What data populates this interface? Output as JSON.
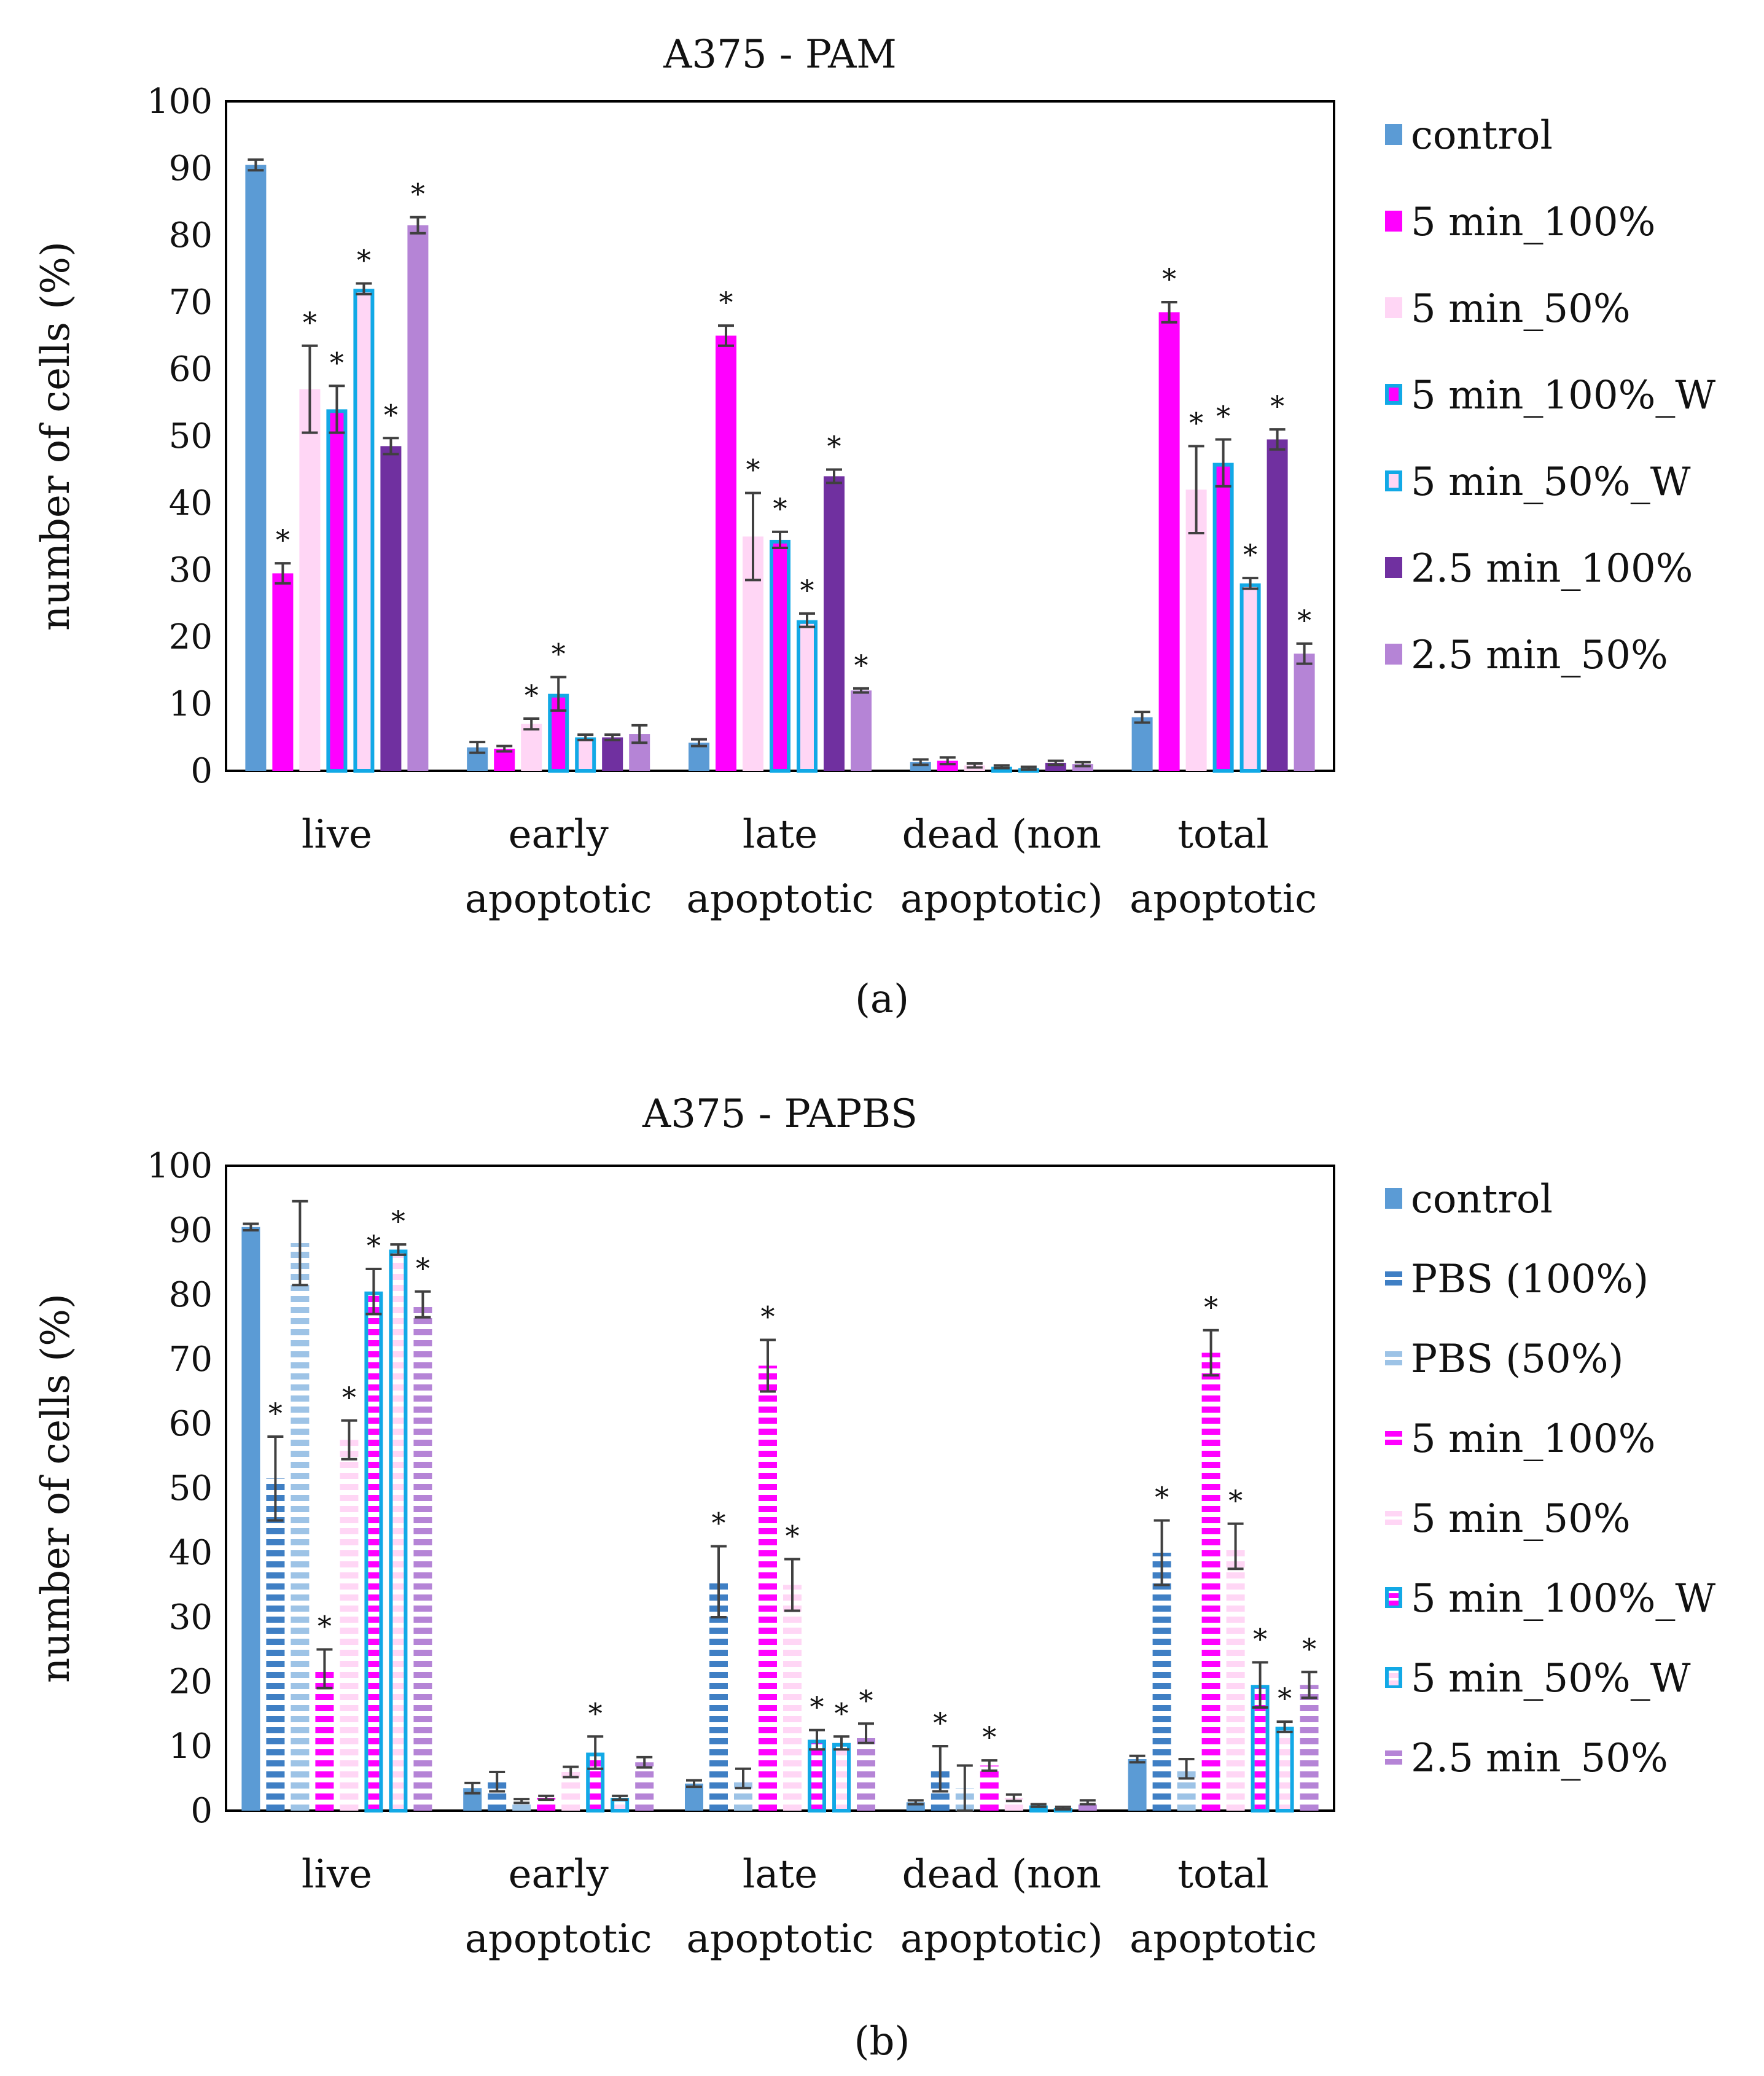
{
  "captions": [
    "(a)",
    "(b)"
  ],
  "colors": {
    "control": "#5b9bd5",
    "pbs100": "#3f7fc4",
    "pbs50": "#9dc3e6",
    "m5_100": "#ff00ff",
    "m5_50": "#ffd6f5",
    "m5_100W_border": "#12a9e6",
    "m5_50W_border": "#12a9e6",
    "m25_100": "#7030a0",
    "m25_50": "#b584d6",
    "errorbar": "#404040"
  },
  "chart_data": [
    {
      "type": "bar",
      "title": "A375 - PAM",
      "ylabel": "number of cells (%)",
      "xlabel": "",
      "ylim": [
        0,
        100
      ],
      "yticks": [
        0,
        10,
        20,
        30,
        40,
        50,
        60,
        70,
        80,
        90,
        100
      ],
      "grid": false,
      "legend_position": "right",
      "categories": [
        [
          "live"
        ],
        [
          "early",
          "apoptotic"
        ],
        [
          "late",
          "apoptotic"
        ],
        [
          "dead (non",
          "apoptotic)"
        ],
        [
          "total",
          "apoptotic"
        ]
      ],
      "series": [
        {
          "name": "control",
          "style": "solid",
          "color": "#5b9bd5",
          "values": [
            90.5,
            3.5,
            4.2,
            1.3,
            8.0
          ],
          "errors": [
            0.8,
            0.8,
            0.5,
            0.4,
            0.8
          ],
          "stars": [
            false,
            false,
            false,
            false,
            false
          ]
        },
        {
          "name": "5 min_100%",
          "style": "solid",
          "color": "#ff00ff",
          "values": [
            29.5,
            3.3,
            65.0,
            1.5,
            68.5
          ],
          "errors": [
            1.5,
            0.4,
            1.5,
            0.5,
            1.5
          ],
          "stars": [
            true,
            false,
            true,
            false,
            true
          ]
        },
        {
          "name": "5 min_50%",
          "style": "solid",
          "color": "#ffd6f5",
          "values": [
            57.0,
            7.0,
            35.0,
            0.8,
            42.0
          ],
          "errors": [
            6.5,
            0.8,
            6.5,
            0.3,
            6.5
          ],
          "stars": [
            true,
            true,
            true,
            false,
            true
          ]
        },
        {
          "name": "5 min_100%_W",
          "style": "bordered",
          "color": "#ff00ff",
          "border": "#12a9e6",
          "values": [
            54.0,
            11.5,
            34.5,
            0.6,
            46.0
          ],
          "errors": [
            3.5,
            2.5,
            1.2,
            0.2,
            3.5
          ],
          "stars": [
            true,
            true,
            true,
            false,
            true
          ]
        },
        {
          "name": "5 min_50%_W",
          "style": "bordered",
          "color": "#ffd6f5",
          "border": "#12a9e6",
          "values": [
            72.0,
            5.0,
            22.5,
            0.4,
            28.0
          ],
          "errors": [
            0.8,
            0.4,
            1.0,
            0.2,
            0.8
          ],
          "stars": [
            true,
            false,
            true,
            false,
            true
          ]
        },
        {
          "name": "2.5 min_100%",
          "style": "solid",
          "color": "#7030a0",
          "values": [
            48.5,
            5.0,
            44.0,
            1.2,
            49.5
          ],
          "errors": [
            1.2,
            0.4,
            1.0,
            0.3,
            1.5
          ],
          "stars": [
            true,
            false,
            true,
            false,
            true
          ]
        },
        {
          "name": "2.5 min_50%",
          "style": "solid",
          "color": "#b584d6",
          "values": [
            81.5,
            5.5,
            12.0,
            1.0,
            17.5
          ],
          "errors": [
            1.2,
            1.3,
            0.3,
            0.3,
            1.5
          ],
          "stars": [
            true,
            false,
            true,
            false,
            true
          ]
        }
      ]
    },
    {
      "type": "bar",
      "title": "A375 - PAPBS",
      "ylabel": "number of cells (%)",
      "xlabel": "",
      "ylim": [
        0,
        100
      ],
      "yticks": [
        0,
        10,
        20,
        30,
        40,
        50,
        60,
        70,
        80,
        90,
        100
      ],
      "grid": false,
      "legend_position": "right",
      "categories": [
        [
          "live"
        ],
        [
          "early",
          "apoptotic"
        ],
        [
          "late",
          "apoptotic"
        ],
        [
          "dead (non",
          "apoptotic)"
        ],
        [
          "total",
          "apoptotic"
        ]
      ],
      "series": [
        {
          "name": "control",
          "style": "solid",
          "color": "#5b9bd5",
          "values": [
            90.5,
            3.5,
            4.2,
            1.3,
            8.0
          ],
          "errors": [
            0.5,
            0.8,
            0.5,
            0.3,
            0.5
          ],
          "stars": [
            false,
            false,
            false,
            false,
            false
          ]
        },
        {
          "name": "PBS (100%)",
          "style": "dashed",
          "color": "#3f7fc4",
          "values": [
            51.5,
            4.5,
            35.5,
            6.5,
            40.0
          ],
          "errors": [
            6.5,
            1.5,
            5.5,
            3.5,
            5.0
          ],
          "stars": [
            true,
            false,
            true,
            true,
            true
          ]
        },
        {
          "name": "PBS (50%)",
          "style": "dashed",
          "color": "#9dc3e6",
          "values": [
            88.0,
            1.5,
            5.0,
            3.5,
            6.5
          ],
          "errors": [
            6.5,
            0.3,
            1.5,
            3.5,
            1.5
          ],
          "stars": [
            false,
            false,
            false,
            false,
            false
          ]
        },
        {
          "name": "5 min_100%",
          "style": "dashed",
          "color": "#ff00ff",
          "values": [
            22.0,
            2.0,
            69.0,
            7.0,
            71.0
          ],
          "errors": [
            3.0,
            0.3,
            4.0,
            0.8,
            3.5
          ],
          "stars": [
            true,
            false,
            true,
            true,
            true
          ]
        },
        {
          "name": "5 min_50%",
          "style": "dashed",
          "color": "#ffd6f5",
          "values": [
            57.5,
            6.0,
            35.0,
            2.0,
            41.0
          ],
          "errors": [
            3.0,
            0.8,
            4.0,
            0.5,
            3.5
          ],
          "stars": [
            true,
            false,
            true,
            false,
            true
          ]
        },
        {
          "name": "5 min_100%_W",
          "style": "dashed-bordered",
          "color": "#ff00ff",
          "border": "#12a9e6",
          "values": [
            80.5,
            9.0,
            11.0,
            0.8,
            19.5
          ],
          "errors": [
            3.5,
            2.5,
            1.5,
            0.2,
            3.5
          ],
          "stars": [
            true,
            true,
            true,
            false,
            true
          ]
        },
        {
          "name": "5 min_50%_W",
          "style": "dashed-bordered",
          "color": "#ffd6f5",
          "border": "#12a9e6",
          "values": [
            87.0,
            2.0,
            10.5,
            0.4,
            13.0
          ],
          "errors": [
            0.8,
            0.3,
            1.0,
            0.2,
            0.8
          ],
          "stars": [
            true,
            false,
            true,
            false,
            true
          ]
        },
        {
          "name": "2.5 min_50%",
          "style": "dashed",
          "color": "#b584d6",
          "values": [
            78.5,
            7.5,
            12.0,
            1.3,
            19.5
          ],
          "errors": [
            2.0,
            0.8,
            1.5,
            0.3,
            2.0
          ],
          "stars": [
            true,
            false,
            true,
            false,
            true
          ]
        }
      ]
    }
  ]
}
